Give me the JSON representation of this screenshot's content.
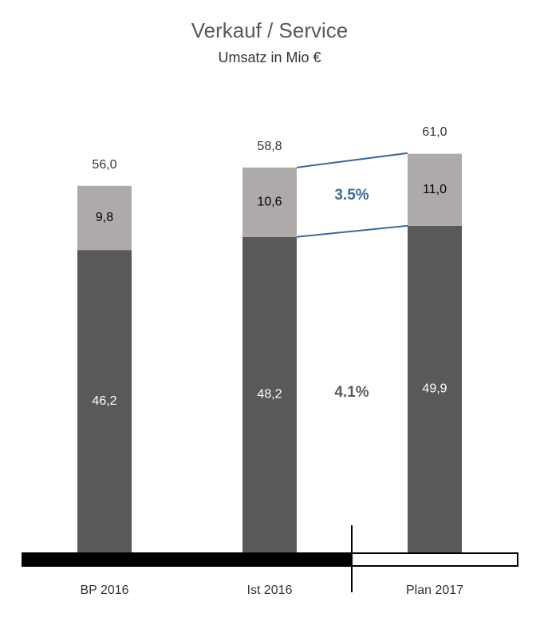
{
  "chart_data": {
    "type": "stacked-bar",
    "title": "Verkauf / Service",
    "subtitle": "Umsatz in Mio €",
    "categories": [
      "BP 2016",
      "Ist 2016",
      "Plan 2017"
    ],
    "series": [
      {
        "color": "#595959",
        "values": [
          46.2,
          48.2,
          49.9
        ],
        "value_labels": [
          "46,2",
          "48,2",
          "49,9"
        ]
      },
      {
        "color": "#aeaaaa",
        "values": [
          9.8,
          10.6,
          11.0
        ],
        "value_labels": [
          "9,8",
          "10,6",
          "11,0"
        ]
      }
    ],
    "totals": [
      56.0,
      58.8,
      61.0
    ],
    "total_labels": [
      "56,0",
      "58,8",
      "61,0"
    ],
    "annotations": [
      {
        "text": "3.5%",
        "color": "#3e6a94"
      },
      {
        "text": "4.1%",
        "color": "#595959"
      }
    ]
  }
}
